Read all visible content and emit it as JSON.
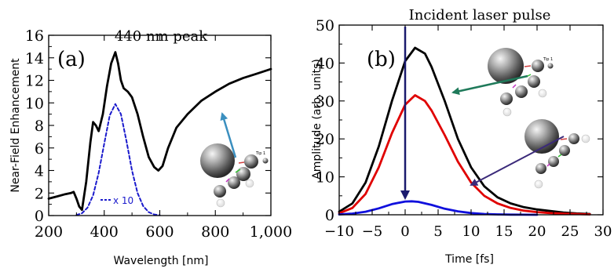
{
  "chart_data": [
    {
      "type": "line",
      "panel_label": "(a)",
      "title": "440 nm peak",
      "xlabel": "Wavelength [nm]",
      "ylabel": "Near-Field Enhancement",
      "xlim": [
        200,
        1000
      ],
      "ylim": [
        0,
        16
      ],
      "xticks": [
        200,
        400,
        600,
        800,
        1000
      ],
      "xtick_labels": [
        "200",
        "400",
        "600",
        "800",
        "1,000"
      ],
      "yticks": [
        0,
        2,
        4,
        6,
        8,
        10,
        12,
        14,
        16
      ],
      "ytick_labels": [
        "0",
        "2",
        "4",
        "6",
        "8",
        "10",
        "12",
        "14",
        "16"
      ],
      "grid": false,
      "series": [
        {
          "style": "solid",
          "color": "#000000",
          "x": [
            200,
            230,
            260,
            280,
            290,
            300,
            310,
            320,
            335,
            350,
            360,
            370,
            380,
            395,
            410,
            425,
            440,
            450,
            460,
            470,
            485,
            500,
            520,
            540,
            560,
            580,
            595,
            610,
            630,
            660,
            700,
            750,
            800,
            850,
            900,
            950,
            1000
          ],
          "y": [
            1.5,
            1.7,
            1.9,
            2.0,
            2.1,
            1.5,
            0.8,
            0.5,
            3.0,
            6.5,
            8.3,
            8.0,
            7.5,
            9.0,
            11.5,
            13.5,
            14.5,
            13.5,
            12.0,
            11.3,
            11.0,
            10.5,
            9.0,
            7.0,
            5.2,
            4.3,
            4.0,
            4.4,
            6.0,
            7.8,
            9.0,
            10.2,
            11.0,
            11.7,
            12.2,
            12.6,
            13.0
          ]
        },
        {
          "name": "x 10",
          "style": "dashed",
          "color": "#1a1acc",
          "x": [
            300,
            320,
            340,
            360,
            380,
            400,
            420,
            440,
            460,
            480,
            500,
            520,
            540,
            560,
            580,
            600
          ],
          "y": [
            0.05,
            0.2,
            0.7,
            1.8,
            3.8,
            6.4,
            8.9,
            9.9,
            9.0,
            6.6,
            4.0,
            2.0,
            0.85,
            0.3,
            0.1,
            0.03
          ]
        }
      ]
    },
    {
      "type": "line",
      "panel_label": "(b)",
      "title": "Incident laser pulse",
      "xlabel": "Time [fs]",
      "ylabel": "Amplitude (arb. units)",
      "xlim": [
        -10,
        30
      ],
      "ylim": [
        0,
        50
      ],
      "xticks": [
        -10,
        -5,
        0,
        5,
        10,
        15,
        20,
        25,
        30
      ],
      "xtick_labels": [
        "−10",
        "−5",
        "0",
        "5",
        "10",
        "15",
        "20",
        "25",
        "30"
      ],
      "yticks": [
        0,
        10,
        20,
        30,
        40,
        50
      ],
      "ytick_labels": [
        "0",
        "10",
        "20",
        "30",
        "40",
        "50"
      ],
      "grid": false,
      "incident_pulse_time": 0,
      "series": [
        {
          "color": "#000000",
          "x": [
            -10,
            -8,
            -6,
            -4,
            -2,
            0,
            1.5,
            3,
            4,
            6,
            8,
            10,
            12,
            14,
            16,
            18,
            20,
            22,
            24,
            26,
            28
          ],
          "y": [
            0.8,
            3.0,
            8.5,
            18.0,
            30.0,
            40.5,
            44.0,
            42.5,
            39.0,
            30.0,
            20.0,
            12.5,
            7.5,
            4.6,
            3.0,
            2.0,
            1.4,
            1.0,
            0.6,
            0.35,
            0.2
          ]
        },
        {
          "color": "#e00000",
          "x": [
            -10,
            -8,
            -6,
            -4,
            -2,
            0,
            1.5,
            3,
            4,
            6,
            8,
            10,
            12,
            14,
            16,
            18,
            20,
            22,
            24,
            26,
            28
          ],
          "y": [
            0.4,
            1.8,
            5.5,
            12.5,
            21.5,
            29.0,
            31.5,
            30.0,
            27.5,
            21.0,
            14.0,
            8.5,
            5.0,
            3.0,
            1.8,
            1.1,
            0.7,
            0.45,
            0.3,
            0.2,
            0.1
          ]
        },
        {
          "color": "#1010dd",
          "x": [
            -10,
            -8,
            -6,
            -4,
            -2,
            0,
            1,
            2,
            4,
            6,
            8,
            10,
            12,
            14,
            16,
            18,
            20
          ],
          "y": [
            0.1,
            0.3,
            0.8,
            1.7,
            2.8,
            3.5,
            3.55,
            3.4,
            2.6,
            1.6,
            0.9,
            0.45,
            0.2,
            0.1,
            0.05,
            0.02,
            0.0
          ]
        }
      ]
    }
  ],
  "insets": {
    "a_label": "Tip 1",
    "b_top_label": "Tip 1"
  },
  "colors": {
    "arrow_a": "#3b8fbf",
    "arrow_b_top": "#1f7a5a",
    "arrow_b_bottom": "#3b2a7a",
    "incident_arrow": "#1a1a6e"
  }
}
